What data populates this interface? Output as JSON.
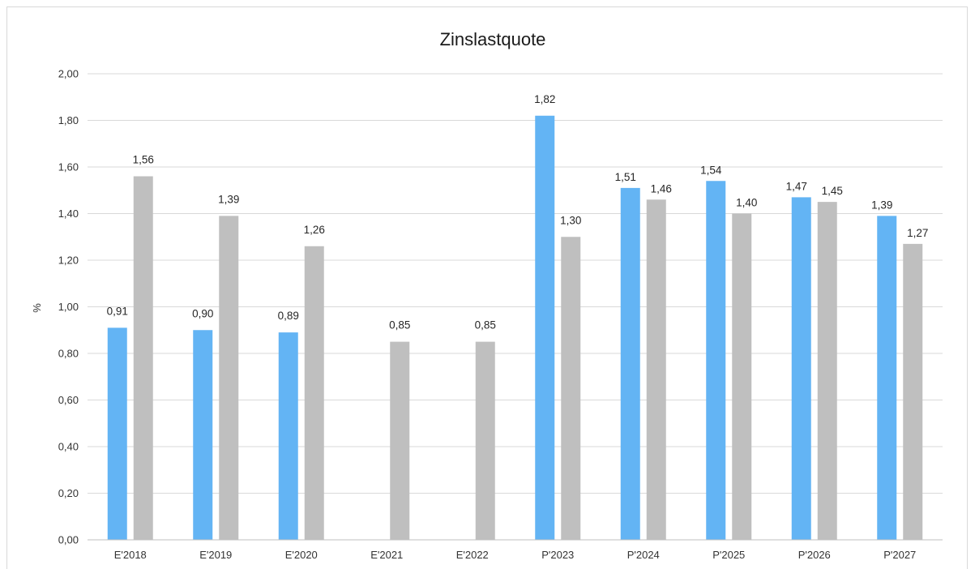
{
  "chart_data": {
    "type": "bar",
    "title": "Zinslastquote",
    "ylabel": "%",
    "xlabel": "",
    "ylim": [
      0,
      2.0
    ],
    "yticks": [
      "0,00",
      "0,20",
      "0,40",
      "0,60",
      "0,80",
      "1,00",
      "1,20",
      "1,40",
      "1,60",
      "1,80",
      "2,00"
    ],
    "grid": true,
    "legend": "none",
    "categories": [
      "E'2018",
      "E'2019",
      "E'2020",
      "E'2021",
      "E'2022",
      "P'2023",
      "P'2024",
      "P'2025",
      "P'2026",
      "P'2027"
    ],
    "series": [
      {
        "color": "#63b4f4",
        "values": [
          0.91,
          0.9,
          0.89,
          null,
          null,
          1.82,
          1.51,
          1.54,
          1.47,
          1.39
        ],
        "labels": [
          "0,91",
          "0,90",
          "0,89",
          null,
          null,
          "1,82",
          "1,51",
          "1,54",
          "1,47",
          "1,39"
        ]
      },
      {
        "color": "#bfbfbf",
        "values": [
          1.56,
          1.39,
          1.26,
          0.85,
          0.85,
          1.3,
          1.46,
          1.4,
          1.45,
          1.27
        ],
        "labels": [
          "1,56",
          "1,39",
          "1,26",
          "0,85",
          "0,85",
          "1,30",
          "1,46",
          "1,40",
          "1,45",
          "1,27"
        ]
      }
    ]
  }
}
